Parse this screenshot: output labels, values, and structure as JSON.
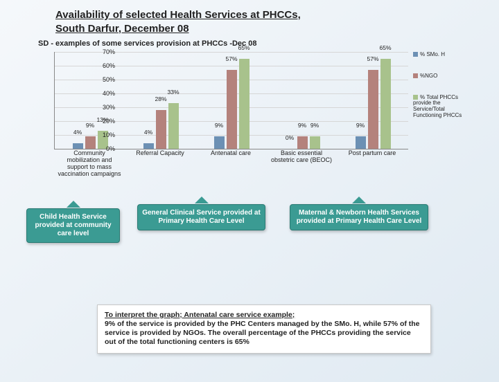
{
  "title_line1": "Availability of selected Health Services at PHCCs,",
  "title_line2": "South Darfur, December 08",
  "subtitle": "SD - examples of some services provision at PHCCs -Dec 08",
  "chart": {
    "type": "bar",
    "ymax": 70,
    "ytick_step": 10,
    "yticks": [
      "0%",
      "10%",
      "20%",
      "30%",
      "40%",
      "50%",
      "60%",
      "70%"
    ],
    "series": [
      {
        "name": "% SMo. H",
        "color": "#6c90b4"
      },
      {
        "name": "%NGO",
        "color": "#b4827c"
      },
      {
        "name": "% Total PHCCs provide the Service/Total Functioning PHCCs",
        "color": "#a8c28c"
      }
    ],
    "categories": [
      {
        "label": "Community mobilization and support to mass vaccination campaigns",
        "values": [
          4,
          9,
          13
        ],
        "value_labels": [
          "4%",
          "9%",
          "13%"
        ]
      },
      {
        "label": "Referral Capacity",
        "values": [
          4,
          28,
          33
        ],
        "value_labels": [
          "4%",
          "28%",
          "33%"
        ]
      },
      {
        "label": "Antenatal care",
        "values": [
          9,
          57,
          65
        ],
        "value_labels": [
          "9%",
          "57%",
          "65%"
        ]
      },
      {
        "label": "Basic essential obstetric care (BEOC)",
        "values": [
          0,
          9,
          9
        ],
        "value_labels": [
          "0%",
          "9%",
          "9%"
        ]
      },
      {
        "label": "Post partum care",
        "values": [
          9,
          57,
          65
        ],
        "value_labels": [
          "9%",
          "57%",
          "65%"
        ]
      }
    ]
  },
  "callouts": [
    {
      "text": "Child Health Service provided at community care level"
    },
    {
      "text": "General Clinical Service provided at Primary Health Care Level"
    },
    {
      "text": "Maternal & Newborn Health Services provided at Primary Health Care Level"
    }
  ],
  "note_head": "To interpret the graph; Antenatal care service example;",
  "note_body": "9% of the service is provided by the PHC Centers managed by the SMo. H, while 57% of the service is provided by NGOs. The overall percentage of the PHCCs providing the service out of the total functioning centers is 65%"
}
